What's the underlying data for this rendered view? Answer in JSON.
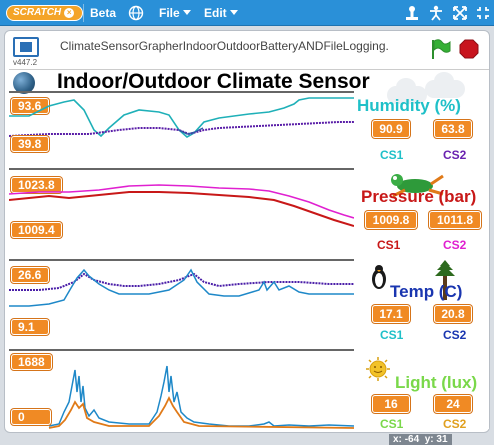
{
  "menubar": {
    "logo": "SCRATCH",
    "logo_close": "×",
    "beta": "Beta",
    "file": "File",
    "edit": "Edit"
  },
  "stage_header": {
    "version": "v447.2",
    "project_title": "ClimateSensorGrapherIndoorOutdoorBatteryANDFileLogging."
  },
  "stage": {
    "title": "Indoor/Outdoor Climate Sensor",
    "panels": [
      {
        "id": "humidity",
        "title": "Humidity (%)",
        "title_color": "#1fc0c8",
        "max": "93.6",
        "min": "39.8",
        "cs1_value": "90.9",
        "cs2_value": "63.8",
        "cs1_label": "CS1",
        "cs2_label": "CS2",
        "cs1_color": "#1fc0c8",
        "cs2_color": "#6a22b0"
      },
      {
        "id": "pressure",
        "title": "Pressure (bar)",
        "title_color": "#c81818",
        "max": "1023.8",
        "min": "1009.4",
        "cs1_value": "1009.8",
        "cs2_value": "1011.8",
        "cs1_label": "CS1",
        "cs2_label": "CS2",
        "cs1_color": "#c81818",
        "cs2_color": "#e020d0"
      },
      {
        "id": "temp",
        "title": "Temp (C)",
        "title_color": "#1a36b0",
        "max": "26.6",
        "min": "9.1",
        "cs1_value": "17.1",
        "cs2_value": "20.8",
        "cs1_label": "CS1",
        "cs2_label": "CS2",
        "cs1_color": "#1fc0c8",
        "cs2_color": "#1a36b0"
      },
      {
        "id": "light",
        "title": "Light (lux)",
        "title_color": "#7ad84a",
        "max": "1688",
        "min": "0",
        "cs1_value": "16",
        "cs2_value": "24",
        "cs1_label": "CS1",
        "cs2_label": "CS2",
        "cs1_color": "#7ad84a",
        "cs2_color": "#e0a020"
      }
    ]
  },
  "status": {
    "x_label": "x:",
    "x_value": "-64",
    "y_label": "y:",
    "y_value": "31"
  },
  "icons": [
    "globe-icon",
    "upload-icon",
    "move-icon",
    "expand-icon",
    "shrink-icon",
    "fullscreen-icon",
    "green-flag-icon",
    "stop-icon",
    "planet-icon",
    "cloud-icon",
    "frog-icon",
    "penguin-icon",
    "tree-icon",
    "sun-icon"
  ]
}
